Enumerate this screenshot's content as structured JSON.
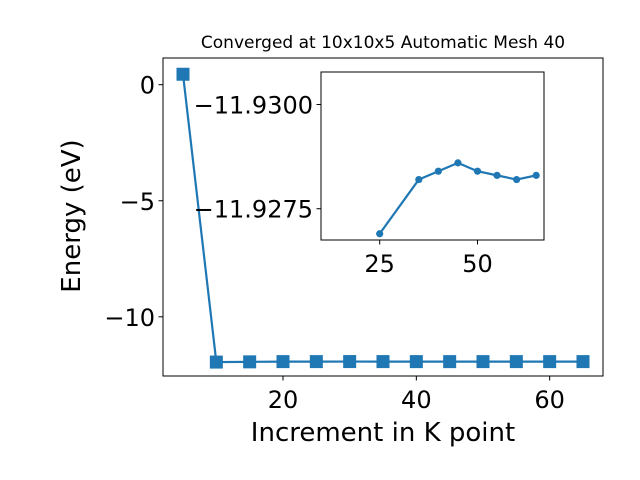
{
  "chart_data": [
    {
      "type": "line",
      "title": "Converged at 10x10x5 Automatic Mesh 40",
      "xlabel": "Increment in K point",
      "ylabel": "Energy (eV)",
      "x": [
        5,
        10,
        15,
        20,
        25,
        30,
        35,
        40,
        45,
        50,
        55,
        60,
        65
      ],
      "series": [
        {
          "values": [
            0.45,
            -11.95,
            -11.94,
            -11.93,
            -11.93,
            -11.928,
            -11.929,
            -11.93,
            -11.931,
            -11.93,
            -11.93,
            -11.93,
            -11.93
          ]
        }
      ],
      "xlim": [
        2.0,
        68.0
      ],
      "ylim": [
        -12.55,
        1.15
      ],
      "xticks": [
        20,
        40,
        60
      ],
      "yticks": [
        0,
        -5,
        -10
      ],
      "marker": "square",
      "grid": false,
      "color": "#1f77b4"
    },
    {
      "type": "line",
      "title": "",
      "xlabel": "",
      "ylabel": "",
      "x": [
        25,
        35,
        40,
        45,
        50,
        55,
        60,
        65
      ],
      "series": [
        {
          "values": [
            -11.9269,
            -11.9282,
            -11.9284,
            -11.9286,
            -11.9284,
            -11.9283,
            -11.9282,
            -11.9283
          ]
        }
      ],
      "xlim": [
        10.0,
        67.0
      ],
      "ylim": [
        -11.92675,
        -11.93078
      ],
      "xticks": [
        25,
        50
      ],
      "yticks": [
        -11.93,
        -11.9275
      ],
      "ytick_labels": [
        "−11.9300",
        "−11.9275"
      ],
      "marker": "circle",
      "grid": false,
      "color": "#1f77b4"
    }
  ]
}
